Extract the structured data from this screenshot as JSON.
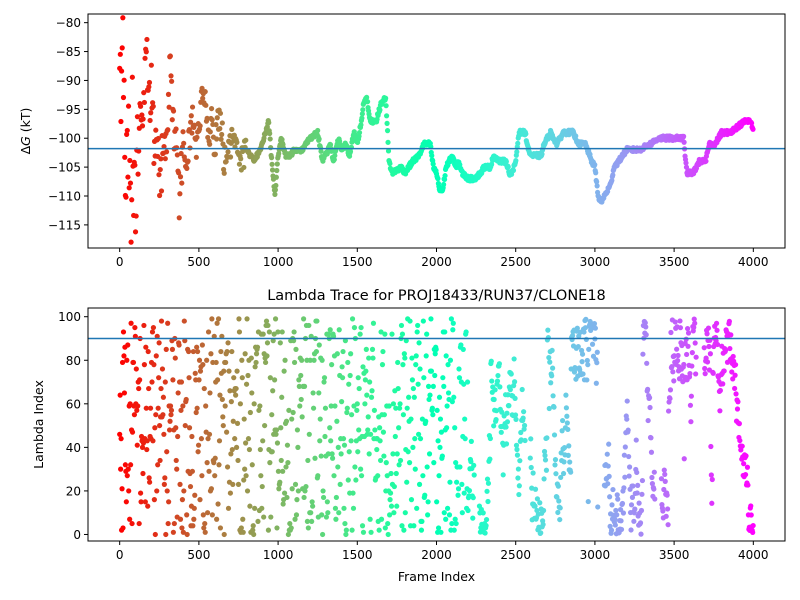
{
  "chart_data": [
    {
      "type": "scatter",
      "title": "",
      "xlabel": "",
      "ylabel": "ΔG (kT)",
      "ylabel_parts": {
        "delta": "Δ",
        "var": "G",
        "unit": " (kT)"
      },
      "xlim": [
        -200,
        4200
      ],
      "ylim": [
        -119,
        -78.5
      ],
      "xticks": [
        0,
        500,
        1000,
        1500,
        2000,
        2500,
        3000,
        3500,
        4000
      ],
      "yticks": [
        -115,
        -110,
        -105,
        -100,
        -95,
        -90,
        -85,
        -80
      ],
      "hline": -101.8,
      "hline_color": "#1f77b4",
      "colormap": "rainbow (red at frame 0 to violet at frame 4000)",
      "grid": false,
      "x_range": [
        0,
        4000
      ],
      "trace_points": [
        [
          0,
          -80
        ],
        [
          10,
          -100
        ],
        [
          20,
          -80
        ],
        [
          30,
          -95
        ],
        [
          40,
          -110
        ],
        [
          50,
          -99
        ],
        [
          60,
          -104
        ],
        [
          70,
          -113
        ],
        [
          80,
          -96
        ],
        [
          90,
          -108
        ],
        [
          100,
          -117
        ],
        [
          110,
          -100
        ],
        [
          120,
          -102
        ],
        [
          130,
          -95
        ],
        [
          150,
          -97
        ],
        [
          160,
          -88
        ],
        [
          170,
          -82
        ],
        [
          180,
          -96
        ],
        [
          200,
          -91
        ],
        [
          220,
          -104
        ],
        [
          240,
          -101
        ],
        [
          260,
          -108
        ],
        [
          280,
          -99
        ],
        [
          300,
          -102
        ],
        [
          320,
          -86
        ],
        [
          340,
          -97
        ],
        [
          360,
          -103
        ],
        [
          380,
          -111
        ],
        [
          400,
          -99
        ],
        [
          420,
          -104
        ],
        [
          440,
          -100
        ],
        [
          460,
          -97
        ],
        [
          480,
          -102
        ],
        [
          500,
          -99
        ],
        [
          520,
          -92
        ],
        [
          540,
          -92
        ],
        [
          560,
          -100
        ],
        [
          580,
          -97
        ],
        [
          600,
          -102
        ],
        [
          620,
          -96
        ],
        [
          650,
          -100
        ],
        [
          660,
          -105
        ],
        [
          670,
          -102
        ],
        [
          700,
          -101
        ],
        [
          720,
          -98
        ],
        [
          740,
          -102
        ],
        [
          760,
          -104
        ],
        [
          800,
          -102
        ],
        [
          850,
          -104
        ],
        [
          900,
          -101
        ],
        [
          940,
          -97
        ],
        [
          960,
          -104
        ],
        [
          980,
          -110
        ],
        [
          1000,
          -103
        ],
        [
          1020,
          -100
        ],
        [
          1050,
          -103
        ],
        [
          1080,
          -103
        ],
        [
          1100,
          -102
        ],
        [
          1150,
          -102
        ],
        [
          1200,
          -100
        ],
        [
          1250,
          -99
        ],
        [
          1280,
          -104
        ],
        [
          1300,
          -103
        ],
        [
          1330,
          -101
        ],
        [
          1350,
          -104
        ],
        [
          1380,
          -100
        ],
        [
          1400,
          -102
        ],
        [
          1430,
          -101
        ],
        [
          1450,
          -103
        ],
        [
          1480,
          -99
        ],
        [
          1500,
          -101
        ],
        [
          1520,
          -98
        ],
        [
          1540,
          -94
        ],
        [
          1560,
          -93
        ],
        [
          1580,
          -97
        ],
        [
          1620,
          -97
        ],
        [
          1650,
          -94
        ],
        [
          1680,
          -93
        ],
        [
          1700,
          -104
        ],
        [
          1720,
          -106
        ],
        [
          1780,
          -105
        ],
        [
          1800,
          -106
        ],
        [
          1850,
          -104
        ],
        [
          1890,
          -103
        ],
        [
          1920,
          -101
        ],
        [
          1960,
          -101
        ],
        [
          1980,
          -105
        ],
        [
          2000,
          -106
        ],
        [
          2020,
          -109
        ],
        [
          2040,
          -109
        ],
        [
          2060,
          -105
        ],
        [
          2100,
          -103
        ],
        [
          2120,
          -105
        ],
        [
          2140,
          -104
        ],
        [
          2160,
          -106
        ],
        [
          2200,
          -107
        ],
        [
          2240,
          -107
        ],
        [
          2280,
          -106
        ],
        [
          2300,
          -105
        ],
        [
          2340,
          -105
        ],
        [
          2360,
          -103
        ],
        [
          2400,
          -104
        ],
        [
          2440,
          -104
        ],
        [
          2460,
          -106
        ],
        [
          2480,
          -106
        ],
        [
          2500,
          -104
        ],
        [
          2520,
          -99
        ],
        [
          2560,
          -99
        ],
        [
          2580,
          -102
        ],
        [
          2600,
          -103
        ],
        [
          2660,
          -103
        ],
        [
          2680,
          -101
        ],
        [
          2720,
          -99
        ],
        [
          2760,
          -101
        ],
        [
          2800,
          -99
        ],
        [
          2860,
          -99
        ],
        [
          2900,
          -101
        ],
        [
          2940,
          -101
        ],
        [
          2980,
          -104
        ],
        [
          3000,
          -105
        ],
        [
          3020,
          -110
        ],
        [
          3040,
          -111
        ],
        [
          3060,
          -110
        ],
        [
          3100,
          -108
        ],
        [
          3120,
          -105
        ],
        [
          3150,
          -104
        ],
        [
          3200,
          -102
        ],
        [
          3280,
          -102
        ],
        [
          3350,
          -101
        ],
        [
          3400,
          -100
        ],
        [
          3500,
          -100
        ],
        [
          3560,
          -100
        ],
        [
          3580,
          -106
        ],
        [
          3620,
          -106
        ],
        [
          3660,
          -104
        ],
        [
          3700,
          -104
        ],
        [
          3720,
          -101
        ],
        [
          3760,
          -101
        ],
        [
          3800,
          -99
        ],
        [
          3850,
          -99
        ],
        [
          3900,
          -98
        ],
        [
          3950,
          -97
        ],
        [
          3980,
          -97
        ],
        [
          4000,
          -98.5
        ]
      ]
    },
    {
      "type": "scatter",
      "title": "Lambda Trace for PROJ18433/RUN37/CLONE18",
      "xlabel": "Frame Index",
      "ylabel": "Lambda Index",
      "xlim": [
        -200,
        4200
      ],
      "ylim": [
        -3,
        104
      ],
      "xticks": [
        0,
        500,
        1000,
        1500,
        2000,
        2500,
        3000,
        3500,
        4000
      ],
      "yticks": [
        0,
        20,
        40,
        60,
        80,
        100
      ],
      "hline": 90,
      "hline_color": "#1f77b4",
      "colormap": "rainbow (red at frame 0 to violet at frame 4000)",
      "grid": false,
      "x_range": [
        0,
        4000
      ],
      "y_range": [
        0,
        99
      ],
      "point_count": 1400
    }
  ]
}
